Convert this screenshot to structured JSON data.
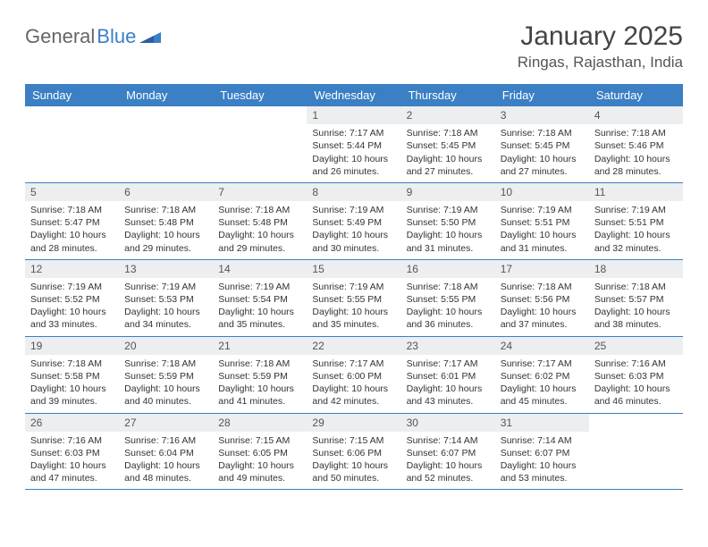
{
  "logo": {
    "part1": "General",
    "part2": "Blue"
  },
  "title": "January 2025",
  "location": "Ringas, Rajasthan, India",
  "colors": {
    "header_bg": "#3b7fc4",
    "header_text": "#ffffff",
    "daynum_bg": "#eceef0",
    "border": "#3b7fc4",
    "logo_gray": "#666666",
    "logo_blue": "#3b7fc4",
    "text": "#333333"
  },
  "weekdays": [
    "Sunday",
    "Monday",
    "Tuesday",
    "Wednesday",
    "Thursday",
    "Friday",
    "Saturday"
  ],
  "weeks": [
    [
      {
        "n": "",
        "sunrise": "",
        "sunset": "",
        "daylight": ""
      },
      {
        "n": "",
        "sunrise": "",
        "sunset": "",
        "daylight": ""
      },
      {
        "n": "",
        "sunrise": "",
        "sunset": "",
        "daylight": ""
      },
      {
        "n": "1",
        "sunrise": "Sunrise: 7:17 AM",
        "sunset": "Sunset: 5:44 PM",
        "daylight": "Daylight: 10 hours and 26 minutes."
      },
      {
        "n": "2",
        "sunrise": "Sunrise: 7:18 AM",
        "sunset": "Sunset: 5:45 PM",
        "daylight": "Daylight: 10 hours and 27 minutes."
      },
      {
        "n": "3",
        "sunrise": "Sunrise: 7:18 AM",
        "sunset": "Sunset: 5:45 PM",
        "daylight": "Daylight: 10 hours and 27 minutes."
      },
      {
        "n": "4",
        "sunrise": "Sunrise: 7:18 AM",
        "sunset": "Sunset: 5:46 PM",
        "daylight": "Daylight: 10 hours and 28 minutes."
      }
    ],
    [
      {
        "n": "5",
        "sunrise": "Sunrise: 7:18 AM",
        "sunset": "Sunset: 5:47 PM",
        "daylight": "Daylight: 10 hours and 28 minutes."
      },
      {
        "n": "6",
        "sunrise": "Sunrise: 7:18 AM",
        "sunset": "Sunset: 5:48 PM",
        "daylight": "Daylight: 10 hours and 29 minutes."
      },
      {
        "n": "7",
        "sunrise": "Sunrise: 7:18 AM",
        "sunset": "Sunset: 5:48 PM",
        "daylight": "Daylight: 10 hours and 29 minutes."
      },
      {
        "n": "8",
        "sunrise": "Sunrise: 7:19 AM",
        "sunset": "Sunset: 5:49 PM",
        "daylight": "Daylight: 10 hours and 30 minutes."
      },
      {
        "n": "9",
        "sunrise": "Sunrise: 7:19 AM",
        "sunset": "Sunset: 5:50 PM",
        "daylight": "Daylight: 10 hours and 31 minutes."
      },
      {
        "n": "10",
        "sunrise": "Sunrise: 7:19 AM",
        "sunset": "Sunset: 5:51 PM",
        "daylight": "Daylight: 10 hours and 31 minutes."
      },
      {
        "n": "11",
        "sunrise": "Sunrise: 7:19 AM",
        "sunset": "Sunset: 5:51 PM",
        "daylight": "Daylight: 10 hours and 32 minutes."
      }
    ],
    [
      {
        "n": "12",
        "sunrise": "Sunrise: 7:19 AM",
        "sunset": "Sunset: 5:52 PM",
        "daylight": "Daylight: 10 hours and 33 minutes."
      },
      {
        "n": "13",
        "sunrise": "Sunrise: 7:19 AM",
        "sunset": "Sunset: 5:53 PM",
        "daylight": "Daylight: 10 hours and 34 minutes."
      },
      {
        "n": "14",
        "sunrise": "Sunrise: 7:19 AM",
        "sunset": "Sunset: 5:54 PM",
        "daylight": "Daylight: 10 hours and 35 minutes."
      },
      {
        "n": "15",
        "sunrise": "Sunrise: 7:19 AM",
        "sunset": "Sunset: 5:55 PM",
        "daylight": "Daylight: 10 hours and 35 minutes."
      },
      {
        "n": "16",
        "sunrise": "Sunrise: 7:18 AM",
        "sunset": "Sunset: 5:55 PM",
        "daylight": "Daylight: 10 hours and 36 minutes."
      },
      {
        "n": "17",
        "sunrise": "Sunrise: 7:18 AM",
        "sunset": "Sunset: 5:56 PM",
        "daylight": "Daylight: 10 hours and 37 minutes."
      },
      {
        "n": "18",
        "sunrise": "Sunrise: 7:18 AM",
        "sunset": "Sunset: 5:57 PM",
        "daylight": "Daylight: 10 hours and 38 minutes."
      }
    ],
    [
      {
        "n": "19",
        "sunrise": "Sunrise: 7:18 AM",
        "sunset": "Sunset: 5:58 PM",
        "daylight": "Daylight: 10 hours and 39 minutes."
      },
      {
        "n": "20",
        "sunrise": "Sunrise: 7:18 AM",
        "sunset": "Sunset: 5:59 PM",
        "daylight": "Daylight: 10 hours and 40 minutes."
      },
      {
        "n": "21",
        "sunrise": "Sunrise: 7:18 AM",
        "sunset": "Sunset: 5:59 PM",
        "daylight": "Daylight: 10 hours and 41 minutes."
      },
      {
        "n": "22",
        "sunrise": "Sunrise: 7:17 AM",
        "sunset": "Sunset: 6:00 PM",
        "daylight": "Daylight: 10 hours and 42 minutes."
      },
      {
        "n": "23",
        "sunrise": "Sunrise: 7:17 AM",
        "sunset": "Sunset: 6:01 PM",
        "daylight": "Daylight: 10 hours and 43 minutes."
      },
      {
        "n": "24",
        "sunrise": "Sunrise: 7:17 AM",
        "sunset": "Sunset: 6:02 PM",
        "daylight": "Daylight: 10 hours and 45 minutes."
      },
      {
        "n": "25",
        "sunrise": "Sunrise: 7:16 AM",
        "sunset": "Sunset: 6:03 PM",
        "daylight": "Daylight: 10 hours and 46 minutes."
      }
    ],
    [
      {
        "n": "26",
        "sunrise": "Sunrise: 7:16 AM",
        "sunset": "Sunset: 6:03 PM",
        "daylight": "Daylight: 10 hours and 47 minutes."
      },
      {
        "n": "27",
        "sunrise": "Sunrise: 7:16 AM",
        "sunset": "Sunset: 6:04 PM",
        "daylight": "Daylight: 10 hours and 48 minutes."
      },
      {
        "n": "28",
        "sunrise": "Sunrise: 7:15 AM",
        "sunset": "Sunset: 6:05 PM",
        "daylight": "Daylight: 10 hours and 49 minutes."
      },
      {
        "n": "29",
        "sunrise": "Sunrise: 7:15 AM",
        "sunset": "Sunset: 6:06 PM",
        "daylight": "Daylight: 10 hours and 50 minutes."
      },
      {
        "n": "30",
        "sunrise": "Sunrise: 7:14 AM",
        "sunset": "Sunset: 6:07 PM",
        "daylight": "Daylight: 10 hours and 52 minutes."
      },
      {
        "n": "31",
        "sunrise": "Sunrise: 7:14 AM",
        "sunset": "Sunset: 6:07 PM",
        "daylight": "Daylight: 10 hours and 53 minutes."
      },
      {
        "n": "",
        "sunrise": "",
        "sunset": "",
        "daylight": ""
      }
    ]
  ]
}
